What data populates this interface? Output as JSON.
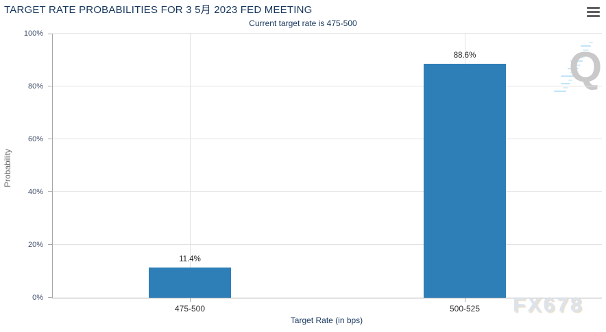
{
  "header": {
    "title": "TARGET RATE PROBABILITIES FOR 3 5月 2023 FED MEETING"
  },
  "menu": {
    "icon": "hamburger-icon"
  },
  "colors": {
    "bar": "#2e7fb8",
    "title_text": "#17375e",
    "grid": "#e2e2e2",
    "axis_line": "#a6a6a6"
  },
  "watermarks": {
    "logo_letter": "Q",
    "brand": "FX678"
  },
  "chart_data": {
    "type": "bar",
    "title": "TARGET RATE PROBABILITIES FOR 3 5月 2023 FED MEETING",
    "subtitle": "Current target rate is 475-500",
    "categories": [
      "475-500",
      "500-525"
    ],
    "values": [
      11.4,
      88.6
    ],
    "value_labels": [
      "11.4%",
      "88.6%"
    ],
    "xlabel": "Target Rate (in bps)",
    "ylabel": "Probability",
    "ylim": [
      0,
      100
    ],
    "yticks": [
      0,
      20,
      40,
      60,
      80,
      100
    ],
    "ytick_labels": [
      "0%",
      "20%",
      "40%",
      "60%",
      "80%",
      "100%"
    ],
    "grid": "on",
    "legend": "none",
    "bar_color": "#2e7fb8"
  }
}
